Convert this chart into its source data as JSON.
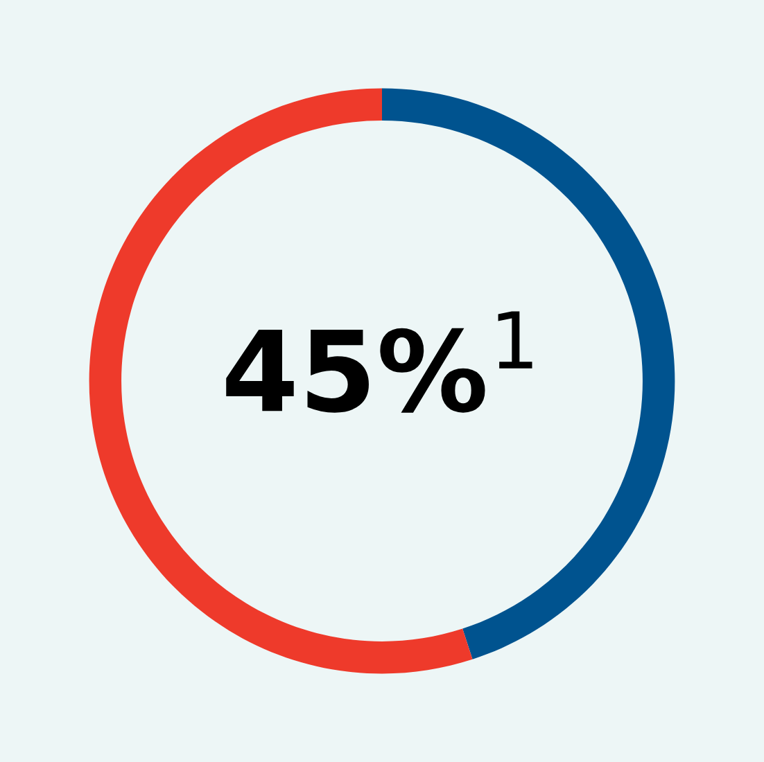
{
  "chart_data": {
    "type": "donut",
    "categories": [
      null,
      null
    ],
    "values": [
      45,
      55
    ],
    "colors": [
      "#00538f",
      "#ee3a2b"
    ],
    "annotations": [
      "45%$^{1}$"
    ]
  }
}
